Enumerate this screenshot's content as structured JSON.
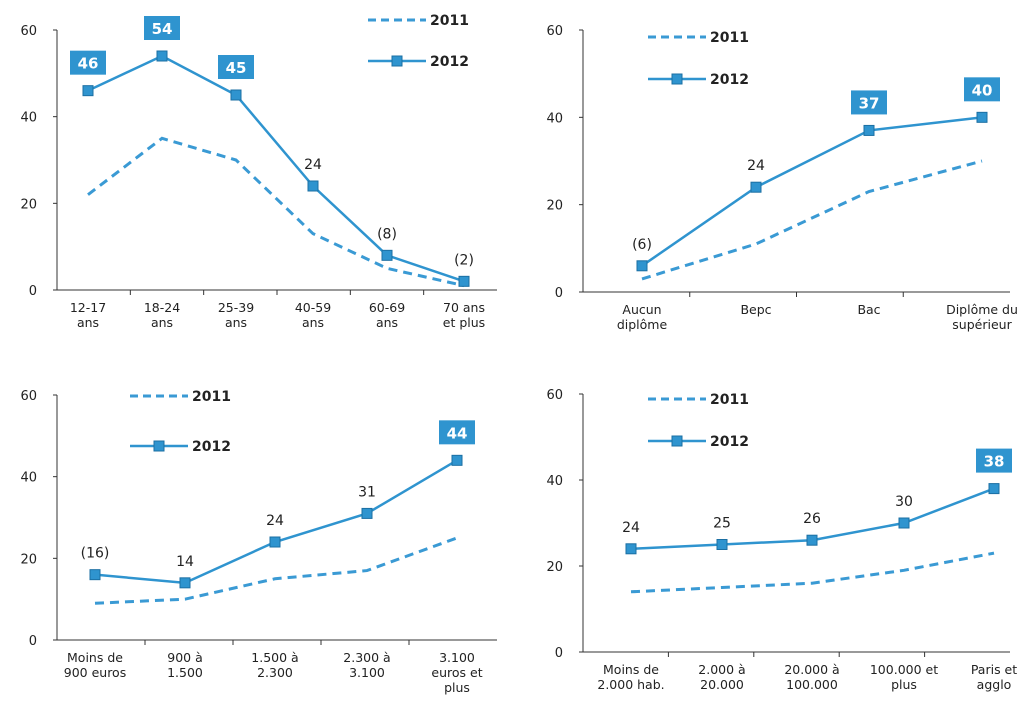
{
  "colors": {
    "accent": "#2f94cf",
    "highlight_bg": "#2f94cf",
    "dash": "#3a9ad4"
  },
  "chart_data": [
    {
      "type": "line",
      "categories": [
        "12-17\nans",
        "18-24\nans",
        "25-39\nans",
        "40-59\nans",
        "60-69\nans",
        "70 ans\net plus"
      ],
      "ylim": [
        0,
        60
      ],
      "yticks": [
        0,
        20,
        40,
        60
      ],
      "series": [
        {
          "name": "2011",
          "style": "dashed",
          "values": [
            22,
            35,
            30,
            13,
            5,
            1
          ]
        },
        {
          "name": "2012",
          "style": "solid-square",
          "values": [
            46,
            54,
            45,
            24,
            8,
            2
          ]
        }
      ],
      "data_labels": [
        "46",
        "54",
        "45",
        "24",
        "(8)",
        "(2)"
      ],
      "highlighted": [
        0,
        1,
        2
      ],
      "legend": "top-right",
      "grid": false
    },
    {
      "type": "line",
      "categories": [
        "Aucun\ndiplôme",
        "Bepc",
        "Bac",
        "Diplôme du\nsupérieur"
      ],
      "ylim": [
        0,
        60
      ],
      "yticks": [
        0,
        20,
        40,
        60
      ],
      "series": [
        {
          "name": "2011",
          "style": "dashed",
          "values": [
            3,
            11,
            23,
            30
          ]
        },
        {
          "name": "2012",
          "style": "solid-square",
          "values": [
            6,
            24,
            37,
            40
          ]
        }
      ],
      "data_labels": [
        "(6)",
        "24",
        "37",
        "40"
      ],
      "highlighted": [
        2,
        3
      ],
      "legend": "top-left",
      "grid": false
    },
    {
      "type": "line",
      "categories": [
        "Moins de\n900 euros",
        "900 à\n1.500",
        "1.500 à\n2.300",
        "2.300 à\n3.100",
        "3.100\neuros et\nplus"
      ],
      "ylim": [
        0,
        60
      ],
      "yticks": [
        0,
        20,
        40,
        60
      ],
      "series": [
        {
          "name": "2011",
          "style": "dashed",
          "values": [
            9,
            10,
            15,
            17,
            25
          ]
        },
        {
          "name": "2012",
          "style": "solid-square",
          "values": [
            16,
            14,
            24,
            31,
            44
          ]
        }
      ],
      "data_labels": [
        "(16)",
        "14",
        "24",
        "31",
        "44"
      ],
      "highlighted": [
        4
      ],
      "legend": "top-left",
      "grid": false
    },
    {
      "type": "line",
      "categories": [
        "Moins de\n2.000 hab.",
        "2.000 à\n20.000",
        "20.000 à\n100.000",
        "100.000 et\nplus",
        "Paris et\nagglo"
      ],
      "ylim": [
        0,
        60
      ],
      "yticks": [
        0,
        20,
        40,
        60
      ],
      "series": [
        {
          "name": "2011",
          "style": "dashed",
          "values": [
            14,
            15,
            16,
            19,
            23
          ]
        },
        {
          "name": "2012",
          "style": "solid-square",
          "values": [
            24,
            25,
            26,
            30,
            38
          ]
        }
      ],
      "data_labels": [
        "24",
        "25",
        "26",
        "30",
        "38"
      ],
      "highlighted": [
        4
      ],
      "legend": "top-left",
      "grid": false
    }
  ]
}
